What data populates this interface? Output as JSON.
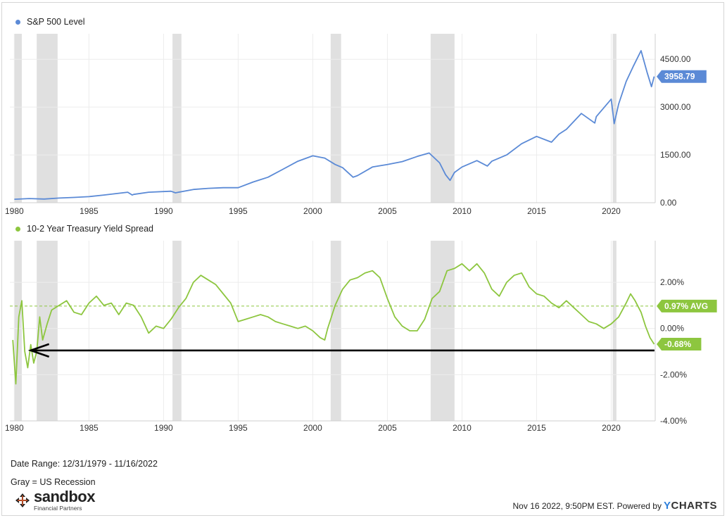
{
  "legends": {
    "top": {
      "label": "S&P 500 Level",
      "color": "#5b8ad6"
    },
    "bottom": {
      "label": "10-2 Year Treasury Yield Spread",
      "color": "#8dc63f"
    }
  },
  "notes": {
    "date_range": "Date Range: 12/31/1979 - 11/16/2022",
    "recession": "Gray = US Recession"
  },
  "logo": {
    "name": "sandbox",
    "sub": "Financial Partners"
  },
  "footer": {
    "stamp": "Nov 16 2022, 9:50PM EST.",
    "powered": "Powered by",
    "brand_y": "Y",
    "brand_rest": "CHARTS"
  },
  "chart_data": [
    {
      "type": "line",
      "series": [
        {
          "name": "S&P 500 Level",
          "color": "#5b8ad6",
          "points": [
            [
              1980,
              108
            ],
            [
              1981,
              130
            ],
            [
              1982,
              115
            ],
            [
              1983,
              145
            ],
            [
              1984,
              165
            ],
            [
              1985,
              190
            ],
            [
              1986,
              240
            ],
            [
              1987.6,
              330
            ],
            [
              1987.9,
              240
            ],
            [
              1988,
              260
            ],
            [
              1989,
              330
            ],
            [
              1990.5,
              360
            ],
            [
              1990.8,
              310
            ],
            [
              1991,
              330
            ],
            [
              1992,
              415
            ],
            [
              1993,
              450
            ],
            [
              1994,
              470
            ],
            [
              1995,
              470
            ],
            [
              1996,
              650
            ],
            [
              1997,
              800
            ],
            [
              1998,
              1050
            ],
            [
              1999,
              1300
            ],
            [
              2000,
              1470
            ],
            [
              2000.8,
              1400
            ],
            [
              2001.5,
              1200
            ],
            [
              2002,
              1100
            ],
            [
              2002.7,
              800
            ],
            [
              2003,
              850
            ],
            [
              2004,
              1120
            ],
            [
              2005,
              1200
            ],
            [
              2006,
              1290
            ],
            [
              2007,
              1450
            ],
            [
              2007.8,
              1560
            ],
            [
              2008.5,
              1250
            ],
            [
              2008.9,
              880
            ],
            [
              2009.2,
              700
            ],
            [
              2009.5,
              950
            ],
            [
              2010,
              1120
            ],
            [
              2011,
              1320
            ],
            [
              2011.7,
              1150
            ],
            [
              2012,
              1300
            ],
            [
              2013,
              1500
            ],
            [
              2014,
              1850
            ],
            [
              2015,
              2080
            ],
            [
              2016,
              1900
            ],
            [
              2016.5,
              2150
            ],
            [
              2017,
              2300
            ],
            [
              2018,
              2800
            ],
            [
              2018.9,
              2500
            ],
            [
              2019,
              2700
            ],
            [
              2020,
              3250
            ],
            [
              2020.2,
              2480
            ],
            [
              2020.5,
              3100
            ],
            [
              2021,
              3800
            ],
            [
              2021.5,
              4300
            ],
            [
              2022,
              4770
            ],
            [
              2022.4,
              4100
            ],
            [
              2022.7,
              3640
            ],
            [
              2022.88,
              3958.79
            ]
          ]
        }
      ],
      "y_ticks": [
        "0.00",
        "1500.00",
        "3000.00",
        "4500.00"
      ],
      "ylim": [
        0,
        5300
      ],
      "last_value_label": "3958.79",
      "x_ticks": [
        "1980",
        "1985",
        "1990",
        "1995",
        "2000",
        "2005",
        "2010",
        "2015",
        "2020"
      ],
      "xlim": [
        1979.7,
        2022.95
      ],
      "recessions": [
        [
          1980.0,
          1980.5
        ],
        [
          1981.5,
          1982.9
        ],
        [
          1990.6,
          1991.2
        ],
        [
          2001.2,
          2001.9
        ],
        [
          2007.9,
          2009.5
        ],
        [
          2020.1,
          2020.35
        ]
      ]
    },
    {
      "type": "line",
      "series": [
        {
          "name": "10-2 Year Treasury Yield Spread",
          "color": "#8dc63f",
          "points": [
            [
              1979.9,
              -0.5
            ],
            [
              1980.1,
              -2.4
            ],
            [
              1980.3,
              0.5
            ],
            [
              1980.5,
              1.2
            ],
            [
              1980.7,
              -1.0
            ],
            [
              1980.9,
              -1.7
            ],
            [
              1981.1,
              -0.7
            ],
            [
              1981.3,
              -1.5
            ],
            [
              1981.5,
              -1.0
            ],
            [
              1981.7,
              0.5
            ],
            [
              1981.9,
              -0.5
            ],
            [
              1982.2,
              0.2
            ],
            [
              1982.5,
              0.8
            ],
            [
              1983,
              1.0
            ],
            [
              1983.5,
              1.2
            ],
            [
              1984,
              0.7
            ],
            [
              1984.5,
              0.6
            ],
            [
              1985,
              1.1
            ],
            [
              1985.5,
              1.4
            ],
            [
              1986,
              1.0
            ],
            [
              1986.5,
              1.1
            ],
            [
              1987,
              0.6
            ],
            [
              1987.5,
              1.1
            ],
            [
              1988,
              1.0
            ],
            [
              1988.5,
              0.5
            ],
            [
              1989,
              -0.2
            ],
            [
              1989.5,
              0.1
            ],
            [
              1990,
              0.0
            ],
            [
              1990.5,
              0.4
            ],
            [
              1991,
              0.9
            ],
            [
              1991.5,
              1.3
            ],
            [
              1992,
              2.0
            ],
            [
              1992.5,
              2.3
            ],
            [
              1993,
              2.1
            ],
            [
              1993.5,
              1.9
            ],
            [
              1994,
              1.5
            ],
            [
              1994.5,
              1.1
            ],
            [
              1995,
              0.3
            ],
            [
              1995.5,
              0.4
            ],
            [
              1996,
              0.5
            ],
            [
              1996.5,
              0.6
            ],
            [
              1997,
              0.5
            ],
            [
              1997.5,
              0.3
            ],
            [
              1998,
              0.2
            ],
            [
              1998.5,
              0.1
            ],
            [
              1999,
              0.0
            ],
            [
              1999.5,
              0.1
            ],
            [
              2000,
              -0.1
            ],
            [
              2000.5,
              -0.4
            ],
            [
              2000.8,
              -0.5
            ],
            [
              2001,
              0.0
            ],
            [
              2001.5,
              1.0
            ],
            [
              2002,
              1.7
            ],
            [
              2002.5,
              2.1
            ],
            [
              2003,
              2.2
            ],
            [
              2003.5,
              2.4
            ],
            [
              2004,
              2.5
            ],
            [
              2004.5,
              2.2
            ],
            [
              2005,
              1.3
            ],
            [
              2005.5,
              0.5
            ],
            [
              2006,
              0.1
            ],
            [
              2006.5,
              -0.1
            ],
            [
              2007,
              -0.1
            ],
            [
              2007.5,
              0.4
            ],
            [
              2008,
              1.3
            ],
            [
              2008.5,
              1.6
            ],
            [
              2009,
              2.5
            ],
            [
              2009.5,
              2.6
            ],
            [
              2010,
              2.8
            ],
            [
              2010.5,
              2.5
            ],
            [
              2011,
              2.8
            ],
            [
              2011.5,
              2.4
            ],
            [
              2012,
              1.7
            ],
            [
              2012.5,
              1.4
            ],
            [
              2013,
              2.0
            ],
            [
              2013.5,
              2.3
            ],
            [
              2014,
              2.4
            ],
            [
              2014.5,
              1.8
            ],
            [
              2015,
              1.5
            ],
            [
              2015.5,
              1.4
            ],
            [
              2016,
              1.1
            ],
            [
              2016.5,
              0.9
            ],
            [
              2017,
              1.2
            ],
            [
              2017.5,
              0.9
            ],
            [
              2018,
              0.6
            ],
            [
              2018.5,
              0.3
            ],
            [
              2019,
              0.2
            ],
            [
              2019.5,
              0.0
            ],
            [
              2020,
              0.2
            ],
            [
              2020.5,
              0.5
            ],
            [
              2021,
              1.1
            ],
            [
              2021.3,
              1.5
            ],
            [
              2021.6,
              1.2
            ],
            [
              2022,
              0.7
            ],
            [
              2022.3,
              0.1
            ],
            [
              2022.6,
              -0.4
            ],
            [
              2022.88,
              -0.68
            ]
          ]
        }
      ],
      "avg_value": 0.97,
      "avg_label": "0.97% AVG",
      "last_value_label": "-0.68%",
      "y_ticks": [
        "-4.00%",
        "-2.00%",
        "0.00%",
        "2.00%"
      ],
      "ylim": [
        -4.0,
        3.8
      ],
      "x_ticks": [
        "1980",
        "1985",
        "1990",
        "1995",
        "2000",
        "2005",
        "2010",
        "2015",
        "2020"
      ],
      "xlim": [
        1979.7,
        2022.95
      ],
      "recessions": [
        [
          1980.0,
          1980.5
        ],
        [
          1981.5,
          1982.9
        ],
        [
          1990.6,
          1991.2
        ],
        [
          2001.2,
          2001.9
        ],
        [
          2007.9,
          2009.5
        ],
        [
          2020.1,
          2020.35
        ]
      ],
      "annotation_arrow": {
        "y": -0.95,
        "x_from": 2022.9,
        "x_to": 1981.1
      }
    }
  ]
}
